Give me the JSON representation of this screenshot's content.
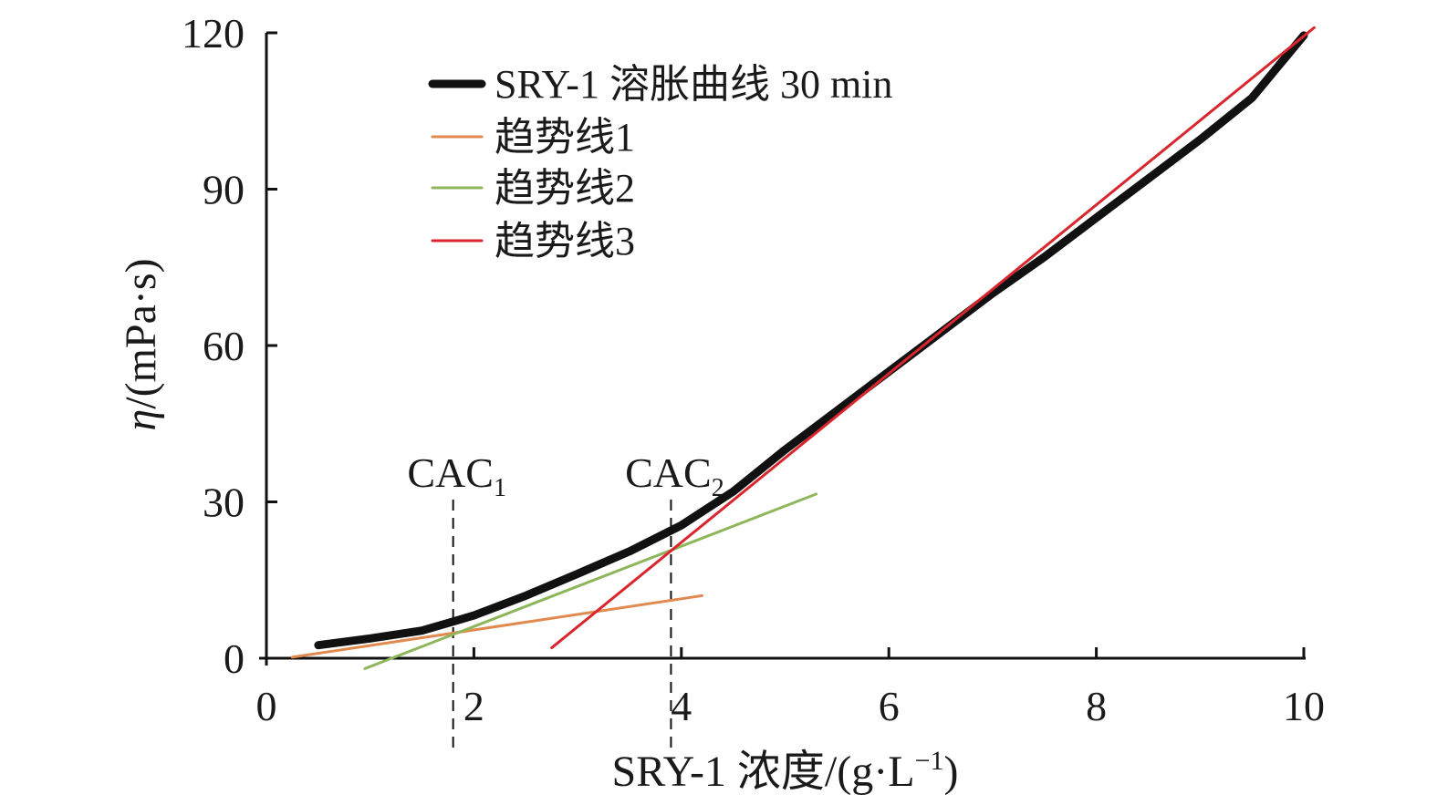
{
  "chart_data": {
    "type": "line",
    "xlabel_parts": [
      "SRY-1 浓度/(g·L",
      "−1",
      ")"
    ],
    "ylabel_parts": [
      "η",
      "/(mPa·s)"
    ],
    "xlim": [
      0,
      10
    ],
    "ylim": [
      0,
      120
    ],
    "x_ticks": [
      0,
      2,
      4,
      6,
      8,
      10
    ],
    "y_ticks": [
      0,
      30,
      60,
      90,
      120
    ],
    "grid": false,
    "legend_position": "top-left",
    "series": [
      {
        "name": "SRY-1 溶胀曲线 30 min",
        "color": "#111111",
        "x": [
          0.5,
          1.0,
          1.5,
          2.0,
          2.5,
          3.0,
          3.5,
          4.0,
          4.5,
          5.0,
          5.5,
          6.0,
          6.5,
          7.0,
          7.5,
          8.0,
          8.5,
          9.0,
          9.5,
          10.0
        ],
        "y": [
          2.5,
          3.8,
          5.3,
          8.2,
          12.0,
          16.2,
          20.5,
          25.5,
          32.0,
          40.0,
          47.5,
          55.0,
          62.5,
          70.0,
          77.0,
          84.5,
          92.0,
          99.5,
          107.5,
          119.5
        ]
      },
      {
        "name": "趋势线1",
        "color": "#e08a4f",
        "x": [
          0.25,
          4.2
        ],
        "y": [
          0.2,
          12.0
        ]
      },
      {
        "name": "趋势线2",
        "color": "#8db65a",
        "x": [
          0.95,
          5.3
        ],
        "y": [
          -2.0,
          31.5
        ]
      },
      {
        "name": "趋势线3",
        "color": "#d9262e",
        "x": [
          2.75,
          10.1
        ],
        "y": [
          2.0,
          121.0
        ]
      }
    ],
    "annotations": [
      {
        "label": "CAC",
        "subscript": "1",
        "x": 1.8
      },
      {
        "label": "CAC",
        "subscript": "2",
        "x": 3.9
      }
    ]
  }
}
